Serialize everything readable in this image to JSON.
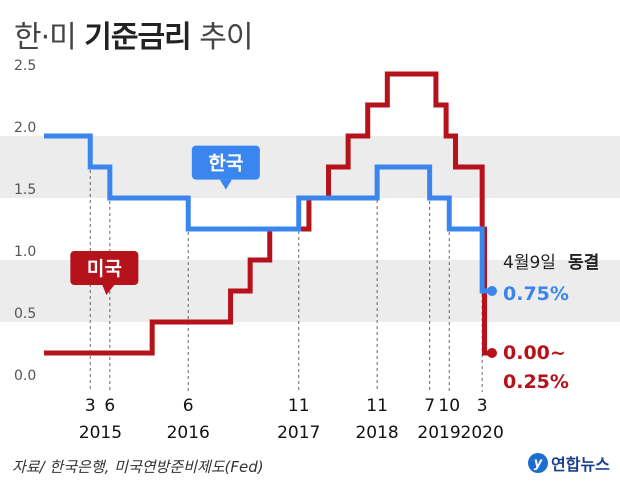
{
  "title": {
    "prefix": "한·미",
    "bold": "기준금리",
    "suffix": "추이"
  },
  "source": "자료/ 한국은행, 미국연방준비제도(Fed)",
  "logo": {
    "mark": "y",
    "text": "연합뉴스"
  },
  "colors": {
    "korea": "#3a86ee",
    "us": "#b5121b",
    "band": "#ececec",
    "guide": "#666666"
  },
  "chart_data": {
    "type": "line",
    "title": "한·미 기준금리 추이",
    "ylim": [
      0,
      2.5
    ],
    "yticks": [
      "0.0",
      "0.5",
      "1.0",
      "1.5",
      "2.0",
      "2.5"
    ],
    "x_month_labels": [
      {
        "label": "3",
        "t": 2015.17
      },
      {
        "label": "6",
        "t": 2015.42
      },
      {
        "label": "6",
        "t": 2016.42
      },
      {
        "label": "11",
        "t": 2017.83
      },
      {
        "label": "11",
        "t": 2018.83
      },
      {
        "label": "7",
        "t": 2019.5
      },
      {
        "label": "10",
        "t": 2019.75
      },
      {
        "label": "3",
        "t": 2020.17
      }
    ],
    "x_year_labels": [
      {
        "label": "2015",
        "t": 2015.3
      },
      {
        "label": "2016",
        "t": 2016.42
      },
      {
        "label": "2017",
        "t": 2017.83
      },
      {
        "label": "2018",
        "t": 2018.83
      },
      {
        "label": "2019",
        "t": 2019.62
      },
      {
        "label": "2020",
        "t": 2020.17
      }
    ],
    "series": [
      {
        "name": "한국",
        "x": [
          2014.58,
          2015.17,
          2015.42,
          2016.42,
          2017.83,
          2018.83,
          2019.5,
          2019.75,
          2020.17,
          2020.27
        ],
        "values": [
          2.0,
          1.75,
          1.5,
          1.25,
          1.5,
          1.75,
          1.5,
          1.25,
          0.75,
          0.75
        ]
      },
      {
        "name": "미국",
        "x": [
          2014.58,
          2015.96,
          2016.96,
          2017.21,
          2017.46,
          2017.96,
          2018.21,
          2018.46,
          2018.71,
          2018.96,
          2019.58,
          2019.71,
          2019.83,
          2020.17,
          2020.2,
          2020.27
        ],
        "values": [
          0.25,
          0.5,
          0.75,
          1.0,
          1.25,
          1.5,
          1.75,
          2.0,
          2.25,
          2.5,
          2.25,
          2.0,
          1.75,
          1.25,
          0.25,
          0.25
        ]
      }
    ],
    "annotations": {
      "korea_bubble": "한국",
      "us_bubble": "미국",
      "freeze_date": "4월9일",
      "freeze_word": "동결",
      "korea_value": "0.75%",
      "us_value_line1": "0.00~",
      "us_value_line2": "0.25%"
    }
  }
}
